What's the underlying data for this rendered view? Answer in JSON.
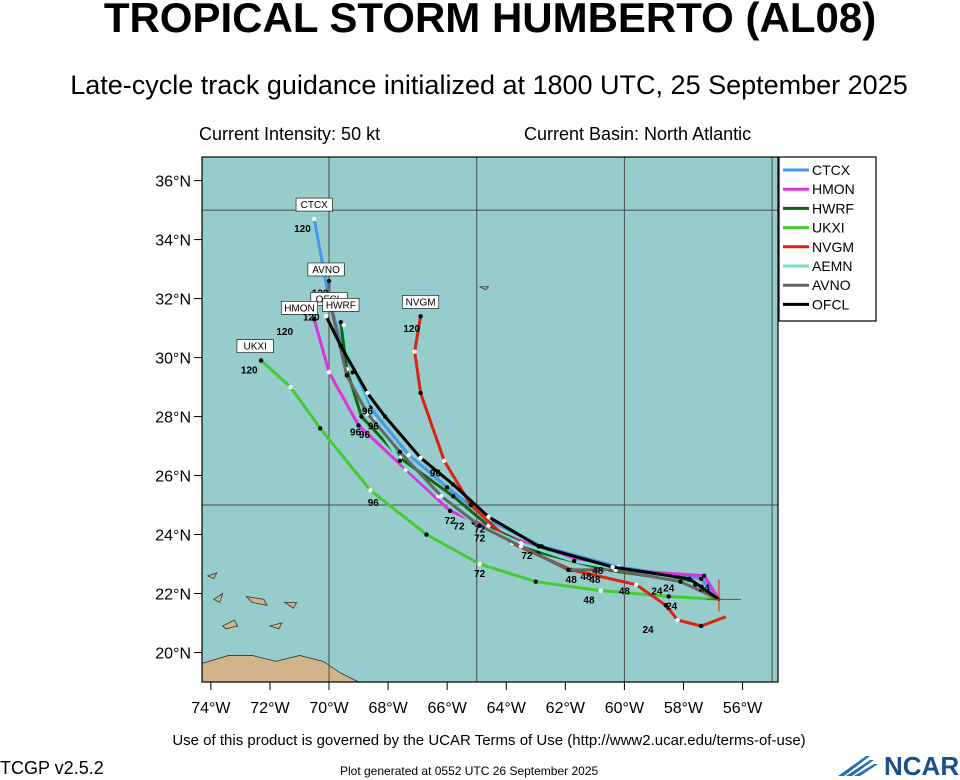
{
  "title": "TROPICAL STORM HUMBERTO (AL08)",
  "subtitle": "Late-cycle track guidance initialized at 1800 UTC, 25 September 2025",
  "current_intensity": "Current Intensity: 50 kt",
  "current_basin": "Current Basin: North Atlantic",
  "footer_terms": "Use of this product is governed by the UCAR Terms of Use (http://www2.ucar.edu/terms-of-use)",
  "version": "TCGP v2.5.2",
  "generated": "Plot generated at 0552 UTC   26 September 2025",
  "logo_text": "NCAR",
  "colors": {
    "ocean": "#96cccc",
    "land": "#d2b48c",
    "grid": "#4c4c4c"
  },
  "map": {
    "lon_range": [
      -74.3,
      -54.8
    ],
    "lat_range": [
      19.0,
      36.8
    ],
    "lon_ticks": [
      {
        "value": -74,
        "label": "74°W"
      },
      {
        "value": -72,
        "label": "72°W"
      },
      {
        "value": -70,
        "label": "70°W"
      },
      {
        "value": -68,
        "label": "68°W"
      },
      {
        "value": -66,
        "label": "66°W"
      },
      {
        "value": -64,
        "label": "64°W"
      },
      {
        "value": -62,
        "label": "62°W"
      },
      {
        "value": -60,
        "label": "60°W"
      },
      {
        "value": -58,
        "label": "58°W"
      },
      {
        "value": -56,
        "label": "56°W"
      }
    ],
    "lat_ticks": [
      {
        "value": 20,
        "label": "20°N"
      },
      {
        "value": 22,
        "label": "22°N"
      },
      {
        "value": 24,
        "label": "24°N"
      },
      {
        "value": 26,
        "label": "26°N"
      },
      {
        "value": 28,
        "label": "28°N"
      },
      {
        "value": 30,
        "label": "30°N"
      },
      {
        "value": 32,
        "label": "32°N"
      },
      {
        "value": 34,
        "label": "34°N"
      },
      {
        "value": 36,
        "label": "36°N"
      }
    ],
    "grid_lons": [
      -70,
      -65,
      -60,
      -55
    ],
    "grid_lats": [
      25,
      35
    ]
  },
  "storm_center": [
    -56.8,
    21.8
  ],
  "chart_data": {
    "type": "line",
    "xlabel": "",
    "ylabel": "",
    "xlim": [
      -74.3,
      -54.8
    ],
    "ylim": [
      19.0,
      36.8
    ],
    "legend_position": "right",
    "series": [
      {
        "name": "CTCX",
        "color": "#4499ee",
        "end_label": "CTCX",
        "points": [
          [
            -56.8,
            21.8
          ],
          [
            -57.4,
            22.5
          ],
          [
            -60.2,
            22.9
          ],
          [
            -62.8,
            23.6
          ],
          [
            -64.6,
            24.5
          ],
          [
            -66.0,
            25.6
          ],
          [
            -67.3,
            26.7
          ],
          [
            -68.6,
            28.3
          ],
          [
            -69.5,
            30.2
          ],
          [
            -70.0,
            32.0
          ],
          [
            -70.5,
            34.7
          ]
        ]
      },
      {
        "name": "HMON",
        "color": "#dd33dd",
        "end_label": "HMON",
        "points": [
          [
            -56.8,
            21.8
          ],
          [
            -57.3,
            22.6
          ],
          [
            -60.2,
            22.8
          ],
          [
            -62.6,
            23.4
          ],
          [
            -64.5,
            24.2
          ],
          [
            -65.9,
            24.8
          ],
          [
            -67.4,
            26.2
          ],
          [
            -69.0,
            27.7
          ],
          [
            -70.0,
            29.5
          ],
          [
            -70.5,
            31.3
          ]
        ]
      },
      {
        "name": "HWRF",
        "color": "#116611",
        "end_label": "HWRF",
        "points": [
          [
            -56.8,
            21.8
          ],
          [
            -57.8,
            22.4
          ],
          [
            -60.6,
            22.8
          ],
          [
            -62.9,
            23.4
          ],
          [
            -64.6,
            24.3
          ],
          [
            -65.8,
            25.3
          ],
          [
            -67.6,
            26.6
          ],
          [
            -68.9,
            28.0
          ],
          [
            -69.4,
            29.6
          ],
          [
            -69.6,
            31.2
          ]
        ]
      },
      {
        "name": "UKXI",
        "color": "#44cc33",
        "end_label": "UKXI",
        "points": [
          [
            -56.8,
            21.8
          ],
          [
            -58.5,
            21.9
          ],
          [
            -60.8,
            22.1
          ],
          [
            -63.0,
            22.4
          ],
          [
            -64.9,
            23.0
          ],
          [
            -66.7,
            24.0
          ],
          [
            -68.6,
            25.5
          ],
          [
            -70.3,
            27.6
          ],
          [
            -71.3,
            29.0
          ],
          [
            -72.3,
            29.9
          ]
        ]
      },
      {
        "name": "NVGM",
        "color": "#dd2211",
        "end_label": "NVGM",
        "points": [
          [
            -56.6,
            21.2
          ],
          [
            -57.4,
            20.9
          ],
          [
            -58.2,
            21.1
          ],
          [
            -58.6,
            21.6
          ],
          [
            -59.6,
            22.3
          ],
          [
            -61.8,
            22.8
          ],
          [
            -63.8,
            23.7
          ],
          [
            -65.2,
            25.0
          ],
          [
            -66.1,
            26.5
          ],
          [
            -66.9,
            28.8
          ],
          [
            -67.1,
            30.2
          ],
          [
            -66.9,
            31.4
          ]
        ]
      },
      {
        "name": "AEMN",
        "color": "#77ddcc",
        "end_label": "",
        "points": [
          [
            -56.8,
            21.8
          ],
          [
            -57.6,
            22.3
          ],
          [
            -59.4,
            22.7
          ],
          [
            -61.7,
            23.1
          ],
          [
            -63.5,
            23.7
          ],
          [
            -65.1,
            24.4
          ],
          [
            -66.3,
            25.3
          ],
          [
            -67.6,
            26.5
          ],
          [
            -68.5,
            27.9
          ],
          [
            -69.2,
            29.5
          ],
          [
            -69.5,
            31.1
          ]
        ]
      },
      {
        "name": "AVNO",
        "color": "#666666",
        "end_label": "AVNO",
        "points": [
          [
            -56.8,
            21.8
          ],
          [
            -58.1,
            22.4
          ],
          [
            -60.3,
            22.8
          ],
          [
            -61.9,
            22.8
          ],
          [
            -63.5,
            23.6
          ],
          [
            -64.9,
            24.3
          ],
          [
            -66.2,
            25.3
          ],
          [
            -67.6,
            26.8
          ],
          [
            -68.7,
            28.1
          ],
          [
            -69.4,
            29.4
          ],
          [
            -70.0,
            32.0
          ],
          [
            -70.0,
            32.6
          ]
        ]
      },
      {
        "name": "OFCL",
        "color": "#000000",
        "end_label": "OFCL",
        "points": [
          [
            -56.8,
            21.8
          ],
          [
            -57.8,
            22.5
          ],
          [
            -60.4,
            22.9
          ],
          [
            -62.9,
            23.6
          ],
          [
            -64.6,
            24.6
          ],
          [
            -65.8,
            25.7
          ],
          [
            -66.9,
            26.6
          ],
          [
            -68.1,
            28.0
          ],
          [
            -68.7,
            28.8
          ],
          [
            -69.6,
            30.4
          ],
          [
            -70.1,
            31.4
          ]
        ]
      }
    ],
    "hour_labels": [
      {
        "text": "24",
        "lon": -58.4,
        "lat": 21.6
      },
      {
        "text": "24",
        "lon": -58.9,
        "lat": 22.1
      },
      {
        "text": "24",
        "lon": -58.5,
        "lat": 22.2
      },
      {
        "text": "24",
        "lon": -59.2,
        "lat": 20.8
      },
      {
        "text": "24",
        "lon": -57.3,
        "lat": 22.2
      },
      {
        "text": "48",
        "lon": -60.0,
        "lat": 22.1
      },
      {
        "text": "48",
        "lon": -61.2,
        "lat": 21.8
      },
      {
        "text": "48",
        "lon": -61.3,
        "lat": 22.6
      },
      {
        "text": "48",
        "lon": -61.8,
        "lat": 22.5
      },
      {
        "text": "48",
        "lon": -60.9,
        "lat": 22.8
      },
      {
        "text": "48",
        "lon": -61.0,
        "lat": 22.5
      },
      {
        "text": "72",
        "lon": -63.3,
        "lat": 23.3
      },
      {
        "text": "72",
        "lon": -64.9,
        "lat": 22.7
      },
      {
        "text": "72",
        "lon": -65.6,
        "lat": 24.3
      },
      {
        "text": "72",
        "lon": -64.9,
        "lat": 23.9
      },
      {
        "text": "72",
        "lon": -64.9,
        "lat": 24.2
      },
      {
        "text": "72",
        "lon": -65.9,
        "lat": 24.5
      },
      {
        "text": "96",
        "lon": -68.5,
        "lat": 25.1
      },
      {
        "text": "96",
        "lon": -68.7,
        "lat": 28.2
      },
      {
        "text": "96",
        "lon": -69.1,
        "lat": 27.5
      },
      {
        "text": "96",
        "lon": -68.8,
        "lat": 27.4
      },
      {
        "text": "96",
        "lon": -66.4,
        "lat": 26.1
      },
      {
        "text": "96",
        "lon": -68.5,
        "lat": 27.7
      },
      {
        "text": "120",
        "lon": -70.9,
        "lat": 34.4
      },
      {
        "text": "120",
        "lon": -70.3,
        "lat": 32.2
      },
      {
        "text": "120",
        "lon": -71.5,
        "lat": 30.9
      },
      {
        "text": "120",
        "lon": -72.7,
        "lat": 29.6
      },
      {
        "text": "120",
        "lon": -70.6,
        "lat": 31.4
      },
      {
        "text": "120",
        "lon": -67.2,
        "lat": 31.0
      }
    ],
    "end_boxes": [
      {
        "text": "CTCX",
        "lon": -70.5,
        "lat": 35.0
      },
      {
        "text": "AVNO",
        "lon": -70.1,
        "lat": 32.8
      },
      {
        "text": "OFCL",
        "lon": -70.0,
        "lat": 31.8
      },
      {
        "text": "HMON",
        "lon": -71.0,
        "lat": 31.5
      },
      {
        "text": "HWRF",
        "lon": -69.6,
        "lat": 31.6
      },
      {
        "text": "UKXI",
        "lon": -72.5,
        "lat": 30.2
      },
      {
        "text": "NVGM",
        "lon": -66.9,
        "lat": 31.7
      }
    ]
  }
}
